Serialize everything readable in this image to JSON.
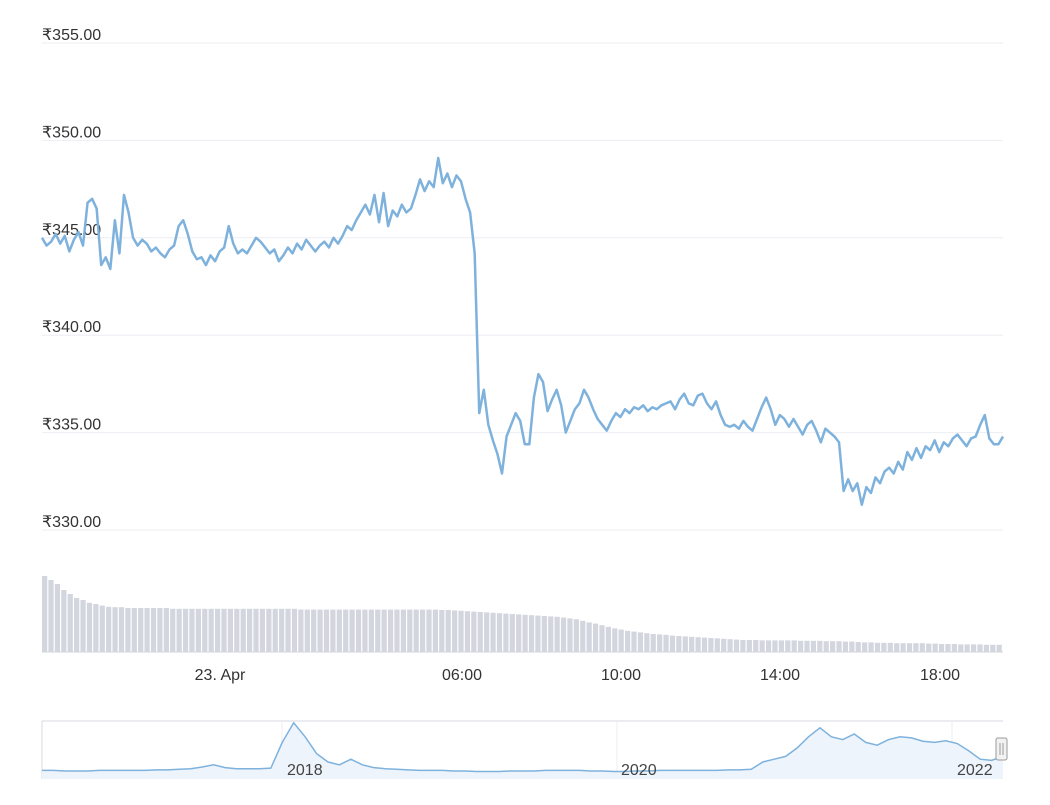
{
  "colors": {
    "price_line": "#7eb2dd",
    "volume_bar": "#d3d6de",
    "grid": "#eceef2",
    "navigator_line": "#7eb2dd",
    "navigator_fill": "#eef4fb",
    "navigator_border": "#d6d9df"
  },
  "chart_data": {
    "type": "line",
    "title": "",
    "xlabel": "",
    "ylabel": "",
    "grid": true,
    "legend": "none",
    "y_axis": {
      "ylim": [
        330,
        355
      ],
      "ticks": [
        "₹355.00",
        "₹350.00",
        "₹345.00",
        "₹340.00",
        "₹335.00",
        "₹330.00"
      ]
    },
    "x_axis": {
      "ticks": [
        "23. Apr",
        "06:00",
        "10:00",
        "14:00",
        "18:00"
      ]
    },
    "series": [
      {
        "values": [
          345.0,
          344.6,
          344.8,
          345.2,
          344.7,
          345.1,
          344.3,
          344.9,
          345.3,
          344.6,
          346.8,
          347.0,
          346.5,
          343.6,
          344.0,
          343.4,
          345.9,
          344.2,
          347.2,
          346.3,
          345.0,
          344.6,
          344.9,
          344.7,
          344.3,
          344.5,
          344.2,
          344.0,
          344.4,
          344.6,
          345.6,
          345.9,
          345.2,
          344.3,
          343.9,
          344.0,
          343.6,
          344.1,
          343.8,
          344.3,
          344.5,
          345.6,
          344.7,
          344.2,
          344.4,
          344.2,
          344.6,
          345.0,
          344.8,
          344.5,
          344.2,
          344.4,
          343.8,
          344.1,
          344.5,
          344.2,
          344.7,
          344.4,
          344.9,
          344.6,
          344.3,
          344.6,
          344.8,
          344.5,
          345.0,
          344.7,
          345.1,
          345.6,
          345.4,
          345.9,
          346.3,
          346.7,
          346.2,
          347.2,
          345.8,
          347.3,
          345.6,
          346.4,
          346.1,
          346.7,
          346.3,
          346.5,
          347.2,
          348.0,
          347.4,
          347.9,
          347.6,
          349.1,
          347.8,
          348.3,
          347.6,
          348.2,
          347.9,
          347.0,
          346.3,
          344.2,
          336.0,
          337.2,
          335.4,
          334.6,
          333.9,
          332.9,
          334.8,
          335.4,
          336.0,
          335.6,
          334.4,
          334.4,
          336.8,
          338.0,
          337.6,
          336.1,
          336.7,
          337.2,
          336.4,
          335.0,
          335.6,
          336.2,
          336.5,
          337.2,
          336.8,
          336.2,
          335.7,
          335.4,
          335.1,
          335.6,
          336.0,
          335.8,
          336.2,
          336.0,
          336.3,
          336.2,
          336.4,
          336.1,
          336.3,
          336.2,
          336.4,
          336.5,
          336.6,
          336.2,
          336.7,
          337.0,
          336.5,
          336.4,
          336.9,
          337.0,
          336.5,
          336.2,
          336.6,
          335.9,
          335.4,
          335.3,
          335.4,
          335.2,
          335.6,
          335.3,
          335.1,
          335.7,
          336.3,
          336.8,
          336.2,
          335.4,
          335.9,
          335.7,
          335.3,
          335.7,
          335.3,
          334.9,
          335.4,
          335.6,
          335.1,
          334.5,
          335.2,
          335.0,
          334.8,
          334.5,
          332.0,
          332.6,
          332.0,
          332.4,
          331.3,
          332.2,
          331.9,
          332.7,
          332.4,
          333.0,
          333.2,
          332.9,
          333.5,
          333.1,
          334.0,
          333.6,
          334.2,
          333.7,
          334.3,
          334.1,
          334.6,
          334.0,
          334.5,
          334.3,
          334.7,
          334.9,
          334.6,
          334.3,
          334.7,
          334.8,
          335.4,
          335.9,
          334.7,
          334.4,
          334.4,
          334.8
        ]
      }
    ],
    "volume": [
      19,
      18,
      17,
      15.5,
      14.5,
      13.5,
      13,
      12.3,
      12,
      11.6,
      11.3,
      11.2,
      11.2,
      11,
      11,
      11,
      11,
      11,
      11,
      11,
      10.8,
      10.8,
      10.8,
      10.8,
      10.8,
      10.8,
      10.8,
      10.8,
      10.8,
      10.8,
      10.8,
      10.8,
      10.8,
      10.8,
      10.8,
      10.8,
      10.8,
      10.8,
      10.8,
      10.8,
      10.6,
      10.6,
      10.6,
      10.6,
      10.6,
      10.6,
      10.6,
      10.6,
      10.6,
      10.6,
      10.6,
      10.6,
      10.6,
      10.6,
      10.6,
      10.6,
      10.6,
      10.6,
      10.6,
      10.6,
      10.6,
      10.6,
      10.5,
      10.5,
      10.4,
      10.3,
      10.2,
      10.1,
      10.0,
      9.9,
      9.8,
      9.7,
      9.6,
      9.5,
      9.4,
      9.3,
      9.2,
      9.1,
      9.0,
      8.9,
      8.8,
      8.6,
      8.4,
      8.2,
      7.8,
      7.4,
      7.1,
      6.7,
      6.3,
      5.9,
      5.6,
      5.3,
      5.1,
      4.9,
      4.7,
      4.5,
      4.4,
      4.3,
      4.1,
      4.0,
      3.9,
      3.8,
      3.7,
      3.6,
      3.5,
      3.4,
      3.3,
      3.2,
      3.1,
      3.0,
      3.0,
      3.0,
      2.9,
      2.9,
      2.9,
      2.9,
      2.9,
      2.9,
      2.8,
      2.8,
      2.8,
      2.8,
      2.7,
      2.7,
      2.7,
      2.6,
      2.6,
      2.5,
      2.4,
      2.4,
      2.3,
      2.3,
      2.3,
      2.2,
      2.2,
      2.2,
      2.2,
      2.2,
      2.1,
      2.1,
      2.0,
      2.0,
      2.0,
      1.9,
      1.9,
      1.9,
      1.9,
      1.8,
      1.8,
      1.8
    ],
    "navigator": {
      "ticks": [
        "2018",
        "2020",
        "2022"
      ],
      "values": [
        1.0,
        1.0,
        0.9,
        0.9,
        0.9,
        1.0,
        1.0,
        1.0,
        1.0,
        1.0,
        1.1,
        1.1,
        1.2,
        1.3,
        1.6,
        2.0,
        1.5,
        1.3,
        1.3,
        1.3,
        1.4,
        6.0,
        9.5,
        7.0,
        4.0,
        2.5,
        2.0,
        3.0,
        2.0,
        1.5,
        1.3,
        1.2,
        1.1,
        1.0,
        1.0,
        1.0,
        0.9,
        0.9,
        0.8,
        0.8,
        0.8,
        0.9,
        0.9,
        0.9,
        1.0,
        1.0,
        1.0,
        1.0,
        0.9,
        0.9,
        0.8,
        0.8,
        0.9,
        0.9,
        1.0,
        1.0,
        1.0,
        1.0,
        1.0,
        1.0,
        1.1,
        1.1,
        1.2,
        2.5,
        3.0,
        3.5,
        5.0,
        7.0,
        8.6,
        7.0,
        6.5,
        7.5,
        6.0,
        5.5,
        6.5,
        7.0,
        6.8,
        6.2,
        6.0,
        6.3,
        5.8,
        4.5,
        3.0,
        2.8,
        3.5
      ]
    }
  }
}
